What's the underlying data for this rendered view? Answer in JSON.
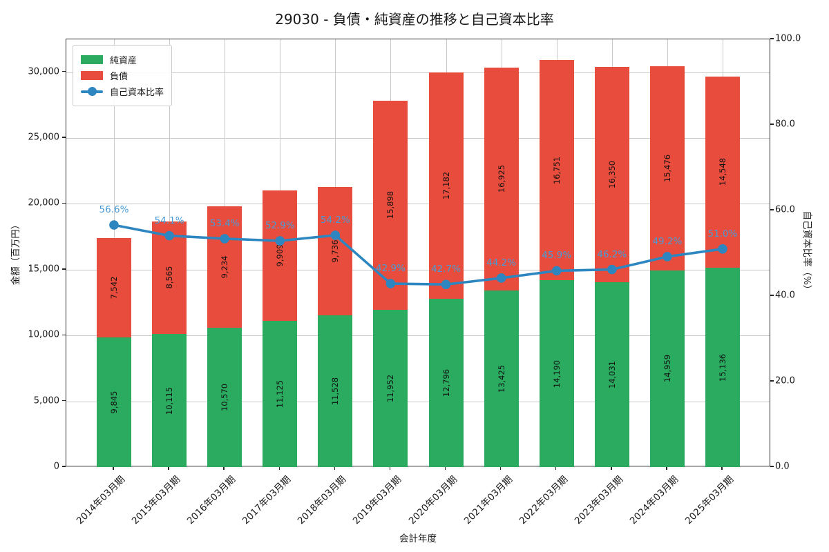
{
  "chart_data": {
    "type": "bar",
    "subtype": "stacked-bars-with-line",
    "title": "29030 - 負債・純資産の推移と自己資本比率",
    "xlabel": "会計年度",
    "ylabel_left": "金額（百万円）",
    "ylabel_right": "自己資本比率（%）",
    "ylim_left": [
      0,
      32500
    ],
    "ylim_right": [
      0,
      100
    ],
    "grid": true,
    "legend_position": "upper-left",
    "categories": [
      "2014年03月期",
      "2015年03月期",
      "2016年03月期",
      "2017年03月期",
      "2018年03月期",
      "2019年03月期",
      "2020年03月期",
      "2021年03月期",
      "2022年03月期",
      "2023年03月期",
      "2024年03月期",
      "2025年03月期"
    ],
    "yticks_left": {
      "values": [
        0,
        5000,
        10000,
        15000,
        20000,
        25000,
        30000
      ],
      "labels": [
        "0",
        "5,000",
        "10,000",
        "15,000",
        "20,000",
        "25,000",
        "30,000"
      ]
    },
    "yticks_right": {
      "values": [
        0,
        20,
        40,
        60,
        80,
        100
      ],
      "labels": [
        "0.0",
        "20.0",
        "40.0",
        "60.0",
        "80.0",
        "100.0"
      ]
    },
    "series": [
      {
        "name": "純資産",
        "kind": "bar",
        "stack": "total",
        "color": "#2aab60",
        "axis": "left",
        "values": [
          9845,
          10115,
          10570,
          11125,
          11528,
          11952,
          12796,
          13425,
          14190,
          14031,
          14959,
          15136
        ],
        "labels": [
          "9,845",
          "10,115",
          "10,570",
          "11,125",
          "11,528",
          "11,952",
          "12,796",
          "13,425",
          "14,190",
          "14,031",
          "14,959",
          "15,136"
        ]
      },
      {
        "name": "負債",
        "kind": "bar",
        "stack": "total",
        "color": "#e74c3c",
        "axis": "left",
        "values": [
          7542,
          8565,
          9234,
          9909,
          9736,
          15898,
          17182,
          16925,
          16751,
          16350,
          15476,
          14548
        ],
        "labels": [
          "7,542",
          "8,565",
          "9,234",
          "9,909",
          "9,736",
          "15,898",
          "17,182",
          "16,925",
          "16,751",
          "16,350",
          "15,476",
          "14,548"
        ]
      },
      {
        "name": "自己資本比率",
        "kind": "line",
        "color": "#2e86c1",
        "label_color": "#4a9bd5",
        "axis": "right",
        "values": [
          56.6,
          54.1,
          53.4,
          52.9,
          54.2,
          42.9,
          42.7,
          44.2,
          45.9,
          46.2,
          49.2,
          51.0
        ],
        "labels": [
          "56.6%",
          "54.1%",
          "53.4%",
          "52.9%",
          "54.2%",
          "42.9%",
          "42.7%",
          "44.2%",
          "45.9%",
          "46.2%",
          "49.2%",
          "51.0%"
        ]
      }
    ]
  }
}
